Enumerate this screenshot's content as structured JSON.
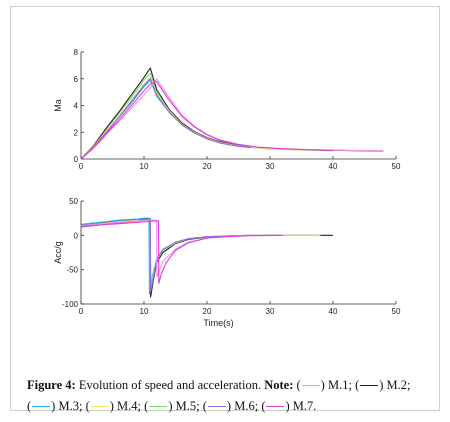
{
  "figure": {
    "caption_label": "Figure 4:",
    "caption_text": "Evolution of speed and acceleration.",
    "note_label": "Note:",
    "legend": [
      {
        "label": "M.1",
        "color": "#f090e8",
        "sep": ";"
      },
      {
        "label": "M.2",
        "color": "#222222",
        "sep": ";"
      },
      {
        "label": "M.3",
        "color": "#28b4e8",
        "sep": ";"
      },
      {
        "label": "M.4",
        "color": "#f0e860",
        "sep": ";"
      },
      {
        "label": "M.5",
        "color": "#78e070",
        "sep": ";"
      },
      {
        "label": "M.6",
        "color": "#8c6ce0",
        "sep": ";"
      },
      {
        "label": "M.7",
        "color": "#e03ce0",
        "sep": "."
      }
    ]
  },
  "chart_data": [
    {
      "type": "line",
      "title": "",
      "xlabel": "",
      "ylabel": "Ma",
      "xlim": [
        0,
        50
      ],
      "ylim": [
        0,
        8
      ],
      "xticks": [
        0,
        10,
        20,
        30,
        40,
        50
      ],
      "yticks": [
        0,
        2,
        4,
        6,
        8
      ],
      "series": [
        {
          "color": "#78e070",
          "x": [
            0,
            2,
            4,
            6,
            8,
            10,
            11,
            12,
            14,
            16,
            18,
            20,
            22,
            25,
            28,
            31,
            35,
            40
          ],
          "y": [
            0,
            1.0,
            2.2,
            3.4,
            4.6,
            5.9,
            6.4,
            5.0,
            3.6,
            2.6,
            2.0,
            1.55,
            1.25,
            0.98,
            0.82,
            0.73,
            0.67,
            0.62
          ]
        },
        {
          "color": "#222222",
          "x": [
            0,
            2,
            4,
            6,
            8,
            10,
            11,
            12,
            14,
            16,
            18,
            20,
            22,
            25,
            28,
            31,
            35,
            40,
            44,
            48
          ],
          "y": [
            0,
            1.0,
            2.3,
            3.5,
            4.8,
            6.1,
            6.8,
            5.2,
            3.7,
            2.7,
            2.05,
            1.6,
            1.3,
            1.0,
            0.85,
            0.76,
            0.7,
            0.65,
            0.62,
            0.6
          ]
        },
        {
          "color": "#28b4e8",
          "x": [
            0,
            2,
            4,
            6,
            8,
            10,
            11,
            12,
            14,
            16,
            18,
            20,
            22,
            25,
            28,
            30
          ],
          "y": [
            0,
            0.9,
            2.0,
            3.1,
            4.2,
            5.4,
            5.9,
            4.7,
            3.5,
            2.55,
            1.95,
            1.5,
            1.2,
            0.95,
            0.82,
            0.76
          ]
        },
        {
          "color": "#f0e860",
          "x": [
            0,
            2,
            4,
            6,
            8,
            10,
            11,
            12,
            14,
            16,
            18,
            20,
            22,
            25,
            28,
            32,
            37
          ],
          "y": [
            0,
            0.95,
            2.1,
            3.2,
            4.4,
            5.6,
            6.1,
            4.9,
            3.6,
            2.6,
            2.0,
            1.55,
            1.25,
            0.98,
            0.82,
            0.72,
            0.66
          ]
        },
        {
          "color": "#8c6ce0",
          "x": [
            0,
            2,
            4,
            6,
            8,
            10,
            11,
            12,
            14,
            16,
            18,
            20,
            22,
            25,
            27
          ],
          "y": [
            0,
            0.9,
            2.0,
            3.1,
            4.3,
            5.5,
            6.0,
            4.8,
            3.5,
            2.55,
            1.95,
            1.5,
            1.2,
            0.95,
            0.85
          ]
        },
        {
          "color": "#f090e8",
          "x": [
            0,
            2,
            4,
            6,
            8,
            10,
            11,
            12,
            14,
            16,
            18,
            20,
            22,
            25,
            28,
            32,
            36,
            40,
            44,
            48
          ],
          "y": [
            0,
            0.8,
            1.8,
            2.8,
            3.8,
            4.8,
            5.3,
            6.0,
            4.6,
            3.3,
            2.45,
            1.85,
            1.45,
            1.1,
            0.9,
            0.78,
            0.7,
            0.66,
            0.63,
            0.62
          ]
        },
        {
          "color": "#e03ce0",
          "x": [
            0,
            2,
            4,
            6,
            8,
            10,
            11,
            12,
            14,
            16,
            18,
            20,
            22,
            25,
            28,
            32,
            36,
            40
          ],
          "y": [
            0,
            0.85,
            1.9,
            2.9,
            4.0,
            5.1,
            5.6,
            5.8,
            4.4,
            3.2,
            2.4,
            1.8,
            1.4,
            1.08,
            0.88,
            0.76,
            0.69,
            0.65
          ]
        }
      ]
    },
    {
      "type": "line",
      "title": "",
      "xlabel": "Time(s)",
      "ylabel": "Acc/g",
      "xlim": [
        0,
        50
      ],
      "ylim": [
        -100,
        50
      ],
      "xticks": [
        0,
        10,
        20,
        30,
        40,
        50
      ],
      "yticks": [
        -100,
        -50,
        0,
        50
      ],
      "series": [
        {
          "color": "#78e070",
          "x": [
            0,
            3,
            6,
            9,
            10.5,
            11,
            11.05,
            11.3,
            12,
            13,
            15,
            17,
            20,
            23,
            27,
            32,
            37
          ],
          "y": [
            13,
            16,
            19,
            21,
            22,
            22,
            -80,
            -60,
            -35,
            -20,
            -10,
            -5,
            -2,
            -1,
            0,
            0,
            0
          ]
        },
        {
          "color": "#222222",
          "x": [
            0,
            3,
            6,
            9,
            10.5,
            11,
            11.05,
            11.4,
            12,
            13,
            15,
            17,
            20,
            23,
            27,
            32,
            36,
            40
          ],
          "y": [
            15,
            18,
            21,
            23,
            24,
            24,
            -90,
            -70,
            -40,
            -25,
            -12,
            -6,
            -2.5,
            -1,
            0,
            0,
            0,
            0
          ]
        },
        {
          "color": "#28b4e8",
          "x": [
            0,
            3,
            6,
            9,
            10,
            10.8,
            10.85,
            11.3,
            12,
            13,
            15,
            17,
            20,
            23,
            27,
            30
          ],
          "y": [
            16,
            19,
            22,
            24,
            25,
            25,
            -85,
            -65,
            -38,
            -22,
            -11,
            -5,
            -2,
            -1,
            0,
            0
          ]
        },
        {
          "color": "#f0e860",
          "x": [
            0,
            3,
            6,
            9,
            10.5,
            11,
            11.05,
            11.5,
            12,
            13,
            15,
            17,
            20,
            23,
            27,
            32,
            38
          ],
          "y": [
            14,
            17,
            20,
            22,
            23,
            23,
            -80,
            -60,
            -36,
            -22,
            -11,
            -5,
            -2,
            -1,
            0,
            0,
            0
          ]
        },
        {
          "color": "#8c6ce0",
          "x": [
            0,
            3,
            6,
            9,
            10,
            11,
            11.05,
            11.5,
            12,
            13,
            15,
            17,
            20,
            23,
            27
          ],
          "y": [
            12,
            15,
            18,
            21,
            23,
            23,
            -82,
            -62,
            -35,
            -21,
            -10,
            -5,
            -2,
            -1,
            0
          ]
        },
        {
          "color": "#f090e8",
          "x": [
            0,
            3,
            6,
            9,
            10.5,
            11.5,
            12,
            12.05,
            12.5,
            13,
            15,
            17,
            20,
            23,
            27,
            32
          ],
          "y": [
            14,
            17,
            19,
            21,
            22,
            22,
            22,
            -60,
            -50,
            -38,
            -20,
            -10,
            -4,
            -2,
            0,
            0
          ]
        },
        {
          "color": "#e03ce0",
          "x": [
            0,
            3,
            6,
            9,
            10.5,
            11.5,
            12.3,
            12.35,
            12.8,
            13.5,
            15,
            17,
            20,
            23,
            27,
            32
          ],
          "y": [
            13,
            15,
            17,
            19,
            20,
            21,
            21,
            -70,
            -55,
            -40,
            -22,
            -11,
            -4,
            -2,
            -0.5,
            0
          ]
        }
      ]
    }
  ]
}
